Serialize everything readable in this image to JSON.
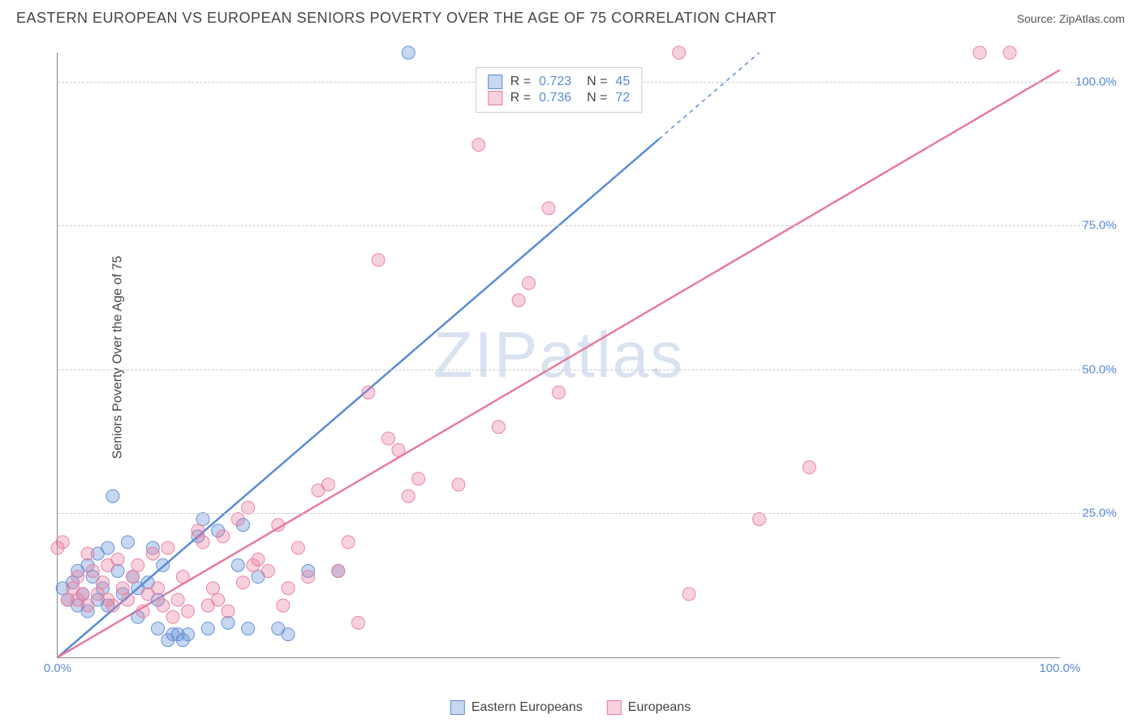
{
  "title": "EASTERN EUROPEAN VS EUROPEAN SENIORS POVERTY OVER THE AGE OF 75 CORRELATION CHART",
  "source": "Source: ZipAtlas.com",
  "watermark": "ZIPatlas",
  "ylabel": "Seniors Poverty Over the Age of 75",
  "chart": {
    "type": "scatter",
    "xlim": [
      0,
      100
    ],
    "ylim": [
      0,
      105
    ],
    "xticks": [
      {
        "v": 0,
        "label": "0.0%"
      },
      {
        "v": 100,
        "label": "100.0%"
      }
    ],
    "yticks": [
      {
        "v": 25,
        "label": "25.0%"
      },
      {
        "v": 50,
        "label": "50.0%"
      },
      {
        "v": 75,
        "label": "75.0%"
      },
      {
        "v": 100,
        "label": "100.0%"
      }
    ],
    "background_color": "#ffffff",
    "grid_color": "#cccccc",
    "grid_dash": "4,4",
    "axis_color": "#888888",
    "marker_radius": 8,
    "marker_opacity": 0.55,
    "marker_stroke_opacity": 0.9,
    "line_width": 2.5,
    "series": [
      {
        "name": "Eastern Europeans",
        "color": "#5b8bd4",
        "fill": "rgba(91,139,212,0.35)",
        "R": "0.723",
        "N": "45",
        "trend": {
          "x1": 0,
          "y1": 0,
          "x2": 70,
          "y2": 105,
          "dash_after": 60
        },
        "points": [
          [
            0.5,
            12
          ],
          [
            1,
            10
          ],
          [
            1.5,
            13
          ],
          [
            2,
            9
          ],
          [
            2,
            15
          ],
          [
            2.5,
            11
          ],
          [
            3,
            16
          ],
          [
            3,
            8
          ],
          [
            3.5,
            14
          ],
          [
            4,
            18
          ],
          [
            4,
            10
          ],
          [
            4.5,
            12
          ],
          [
            5,
            19
          ],
          [
            5,
            9
          ],
          [
            5.5,
            28
          ],
          [
            6,
            15
          ],
          [
            6.5,
            11
          ],
          [
            7,
            20
          ],
          [
            7.5,
            14
          ],
          [
            8,
            7
          ],
          [
            8,
            12
          ],
          [
            9,
            13
          ],
          [
            9.5,
            19
          ],
          [
            10,
            10
          ],
          [
            10,
            5
          ],
          [
            10.5,
            16
          ],
          [
            11,
            3
          ],
          [
            11.5,
            4
          ],
          [
            12,
            4
          ],
          [
            12.5,
            3
          ],
          [
            13,
            4
          ],
          [
            14,
            21
          ],
          [
            14.5,
            24
          ],
          [
            15,
            5
          ],
          [
            16,
            22
          ],
          [
            17,
            6
          ],
          [
            18,
            16
          ],
          [
            18.5,
            23
          ],
          [
            19,
            5
          ],
          [
            20,
            14
          ],
          [
            22,
            5
          ],
          [
            23,
            4
          ],
          [
            25,
            15
          ],
          [
            28,
            15
          ],
          [
            35,
            105
          ]
        ]
      },
      {
        "name": "Europeans",
        "color": "#e87b9f",
        "fill": "rgba(232,123,159,0.35)",
        "R": "0.736",
        "N": "72",
        "trend": {
          "x1": 0,
          "y1": 0,
          "x2": 100,
          "y2": 102
        },
        "points": [
          [
            0,
            19
          ],
          [
            0.5,
            20
          ],
          [
            1,
            10
          ],
          [
            1.5,
            12
          ],
          [
            2,
            10
          ],
          [
            2,
            14
          ],
          [
            2.5,
            11
          ],
          [
            3,
            18
          ],
          [
            3,
            9
          ],
          [
            3.5,
            15
          ],
          [
            4,
            11
          ],
          [
            4.5,
            13
          ],
          [
            5,
            10
          ],
          [
            5,
            16
          ],
          [
            5.5,
            9
          ],
          [
            6,
            17
          ],
          [
            6.5,
            12
          ],
          [
            7,
            10
          ],
          [
            7.5,
            14
          ],
          [
            8,
            16
          ],
          [
            8.5,
            8
          ],
          [
            9,
            11
          ],
          [
            9.5,
            18
          ],
          [
            10,
            12
          ],
          [
            10.5,
            9
          ],
          [
            11,
            19
          ],
          [
            11.5,
            7
          ],
          [
            12,
            10
          ],
          [
            12.5,
            14
          ],
          [
            13,
            8
          ],
          [
            14,
            22
          ],
          [
            14.5,
            20
          ],
          [
            15,
            9
          ],
          [
            15.5,
            12
          ],
          [
            16,
            10
          ],
          [
            16.5,
            21
          ],
          [
            17,
            8
          ],
          [
            18,
            24
          ],
          [
            18.5,
            13
          ],
          [
            19,
            26
          ],
          [
            19.5,
            16
          ],
          [
            20,
            17
          ],
          [
            21,
            15
          ],
          [
            22,
            23
          ],
          [
            22.5,
            9
          ],
          [
            23,
            12
          ],
          [
            24,
            19
          ],
          [
            25,
            14
          ],
          [
            26,
            29
          ],
          [
            27,
            30
          ],
          [
            28,
            15
          ],
          [
            29,
            20
          ],
          [
            30,
            6
          ],
          [
            31,
            46
          ],
          [
            32,
            69
          ],
          [
            33,
            38
          ],
          [
            34,
            36
          ],
          [
            35,
            28
          ],
          [
            36,
            31
          ],
          [
            40,
            30
          ],
          [
            42,
            89
          ],
          [
            44,
            40
          ],
          [
            46,
            62
          ],
          [
            47,
            65
          ],
          [
            49,
            78
          ],
          [
            50,
            46
          ],
          [
            62,
            105
          ],
          [
            63,
            11
          ],
          [
            70,
            24
          ],
          [
            75,
            33
          ],
          [
            92,
            105
          ],
          [
            95,
            105
          ]
        ]
      }
    ]
  },
  "legend_bottom": [
    {
      "label": "Eastern Europeans",
      "color": "#5b8bd4",
      "fill": "rgba(91,139,212,0.35)"
    },
    {
      "label": "Europeans",
      "color": "#e87b9f",
      "fill": "rgba(232,123,159,0.35)"
    }
  ]
}
